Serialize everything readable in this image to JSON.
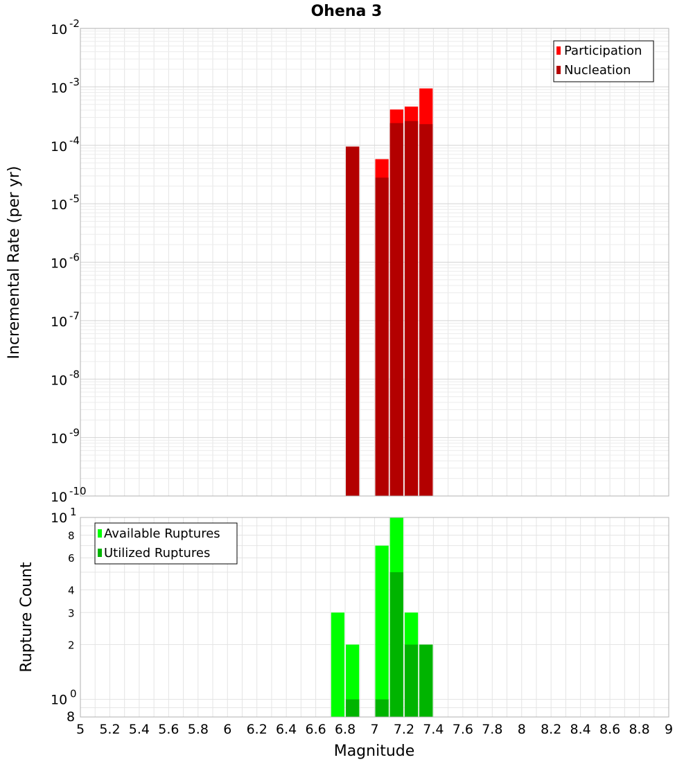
{
  "colors": {
    "participation": "#ff0000",
    "nucleation": "#b30000",
    "available": "#00ff00",
    "utilized": "#00b400",
    "grid": "#e4e4e4",
    "frame": "#b0b0b0"
  },
  "chart_data": [
    {
      "type": "bar",
      "title": "Ohena 3",
      "xlabel": "",
      "ylabel": "Incremental Rate (per yr)",
      "xlim": [
        5,
        9
      ],
      "ylim": [
        1e-10,
        0.01
      ],
      "yscale": "log",
      "grid": true,
      "legend_position": "top-right",
      "bin_width": 0.1,
      "series": [
        {
          "name": "Participation",
          "x": [
            6.85,
            7.05,
            7.15,
            7.25,
            7.35
          ],
          "values": [
            9.5e-05,
            5.8e-05,
            0.00041,
            0.00046,
            0.00094
          ]
        },
        {
          "name": "Nucleation",
          "x": [
            6.85,
            7.05,
            7.15,
            7.25,
            7.35
          ],
          "values": [
            9.5e-05,
            2.8e-05,
            0.00024,
            0.00026,
            0.00023
          ]
        }
      ]
    },
    {
      "type": "bar",
      "title": "",
      "xlabel": "Magnitude",
      "ylabel": "Rupture Count",
      "xlim": [
        5,
        9
      ],
      "ylim": [
        0.8,
        10
      ],
      "yscale": "log",
      "grid": true,
      "legend_position": "top-left",
      "bin_width": 0.1,
      "series": [
        {
          "name": "Available Ruptures",
          "x": [
            6.75,
            6.85,
            7.05,
            7.15,
            7.25,
            7.35
          ],
          "values": [
            3,
            2,
            7,
            10,
            3,
            2
          ]
        },
        {
          "name": "Utilized Ruptures",
          "x": [
            6.85,
            7.05,
            7.15,
            7.25,
            7.35
          ],
          "values": [
            1,
            1,
            5,
            2,
            2
          ]
        }
      ]
    }
  ],
  "axes": {
    "top_y_ticks": [
      {
        "base": "10",
        "exp": "-2"
      },
      {
        "base": "10",
        "exp": "-3"
      },
      {
        "base": "10",
        "exp": "-4"
      },
      {
        "base": "10",
        "exp": "-5"
      },
      {
        "base": "10",
        "exp": "-6"
      },
      {
        "base": "10",
        "exp": "-7"
      },
      {
        "base": "10",
        "exp": "-8"
      },
      {
        "base": "10",
        "exp": "-9"
      },
      {
        "base": "10",
        "exp": "-10"
      }
    ],
    "bottom_y_ticks": [
      "8",
      "2",
      "3",
      "4",
      "6",
      "8"
    ],
    "bottom_y_major": [
      {
        "base": "10",
        "exp": "0"
      },
      {
        "base": "10",
        "exp": "1"
      }
    ],
    "x_ticks": [
      "5",
      "5.2",
      "5.4",
      "5.6",
      "5.8",
      "6",
      "6.2",
      "6.4",
      "6.6",
      "6.8",
      "7",
      "7.2",
      "7.4",
      "7.6",
      "7.8",
      "8",
      "8.2",
      "8.4",
      "8.6",
      "8.8",
      "9"
    ]
  }
}
